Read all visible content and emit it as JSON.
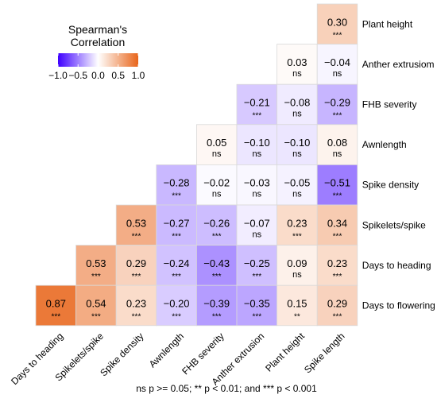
{
  "chart_data": {
    "type": "heatmap",
    "variables": [
      "Days to heading",
      "Spikelets/spike",
      "Spike density",
      "Awnlength",
      "FHB severity",
      "Anther extrusion",
      "Plant height",
      "Spike length"
    ],
    "rows": [
      "Plant height",
      "Anther extrusiom",
      "FHB severity",
      "Awnlength",
      "Spike density",
      "Spikelets/spike",
      "Days to heading",
      "Days to flowering"
    ],
    "columns": [
      "Days to heading",
      "Spikelets/spike",
      "Spike density",
      "Awnlength",
      "FHB severity",
      "Anther extrusion",
      "Plant height",
      "Spike length"
    ],
    "cells": [
      {
        "row": "Plant height",
        "col": "Spike length",
        "value": 0.3,
        "label": "0.30",
        "sig": "***"
      },
      {
        "row": "Anther extrusiom",
        "col": "Plant height",
        "value": 0.03,
        "label": "0.03",
        "sig": "ns"
      },
      {
        "row": "Anther extrusiom",
        "col": "Spike length",
        "value": -0.04,
        "label": "−0.04",
        "sig": "ns"
      },
      {
        "row": "FHB severity",
        "col": "Anther extrusion",
        "value": -0.21,
        "label": "−0.21",
        "sig": "***"
      },
      {
        "row": "FHB severity",
        "col": "Plant height",
        "value": -0.08,
        "label": "−0.08",
        "sig": "ns"
      },
      {
        "row": "FHB severity",
        "col": "Spike length",
        "value": -0.29,
        "label": "−0.29",
        "sig": "***"
      },
      {
        "row": "Awnlength",
        "col": "FHB severity",
        "value": 0.05,
        "label": "0.05",
        "sig": "ns"
      },
      {
        "row": "Awnlength",
        "col": "Anther extrusion",
        "value": -0.1,
        "label": "−0.10",
        "sig": "ns"
      },
      {
        "row": "Awnlength",
        "col": "Plant height",
        "value": -0.1,
        "label": "−0.10",
        "sig": "ns"
      },
      {
        "row": "Awnlength",
        "col": "Spike length",
        "value": 0.08,
        "label": "0.08",
        "sig": "ns"
      },
      {
        "row": "Spike density",
        "col": "Awnlength",
        "value": -0.28,
        "label": "−0.28",
        "sig": "***"
      },
      {
        "row": "Spike density",
        "col": "FHB severity",
        "value": -0.02,
        "label": "−0.02",
        "sig": "ns"
      },
      {
        "row": "Spike density",
        "col": "Anther extrusion",
        "value": -0.03,
        "label": "−0.03",
        "sig": "ns"
      },
      {
        "row": "Spike density",
        "col": "Plant height",
        "value": -0.05,
        "label": "−0.05",
        "sig": "ns"
      },
      {
        "row": "Spike density",
        "col": "Spike length",
        "value": -0.51,
        "label": "−0.51",
        "sig": "***"
      },
      {
        "row": "Spikelets/spike",
        "col": "Spike density",
        "value": 0.53,
        "label": "0.53",
        "sig": "***"
      },
      {
        "row": "Spikelets/spike",
        "col": "Awnlength",
        "value": -0.27,
        "label": "−0.27",
        "sig": "***"
      },
      {
        "row": "Spikelets/spike",
        "col": "FHB severity",
        "value": -0.26,
        "label": "−0.26",
        "sig": "***"
      },
      {
        "row": "Spikelets/spike",
        "col": "Anther extrusion",
        "value": -0.07,
        "label": "−0.07",
        "sig": "ns"
      },
      {
        "row": "Spikelets/spike",
        "col": "Plant height",
        "value": 0.23,
        "label": "0.23",
        "sig": "***"
      },
      {
        "row": "Spikelets/spike",
        "col": "Spike length",
        "value": 0.34,
        "label": "0.34",
        "sig": "***"
      },
      {
        "row": "Days to heading",
        "col": "Spikelets/spike",
        "value": 0.53,
        "label": "0.53",
        "sig": "***"
      },
      {
        "row": "Days to heading",
        "col": "Spike density",
        "value": 0.29,
        "label": "0.29",
        "sig": "***"
      },
      {
        "row": "Days to heading",
        "col": "Awnlength",
        "value": -0.24,
        "label": "−0.24",
        "sig": "***"
      },
      {
        "row": "Days to heading",
        "col": "FHB severity",
        "value": -0.43,
        "label": "−0.43",
        "sig": "***"
      },
      {
        "row": "Days to heading",
        "col": "Anther extrusion",
        "value": -0.25,
        "label": "−0.25",
        "sig": "***"
      },
      {
        "row": "Days to heading",
        "col": "Plant height",
        "value": 0.09,
        "label": "0.09",
        "sig": "ns"
      },
      {
        "row": "Days to heading",
        "col": "Spike length",
        "value": 0.23,
        "label": "0.23",
        "sig": "***"
      },
      {
        "row": "Days to flowering",
        "col": "Days to heading",
        "value": 0.87,
        "label": "0.87",
        "sig": "***"
      },
      {
        "row": "Days to flowering",
        "col": "Spikelets/spike",
        "value": 0.54,
        "label": "0.54",
        "sig": "***"
      },
      {
        "row": "Days to flowering",
        "col": "Spike density",
        "value": 0.23,
        "label": "0.23",
        "sig": "***"
      },
      {
        "row": "Days to flowering",
        "col": "Awnlength",
        "value": -0.2,
        "label": "−0.20",
        "sig": "***"
      },
      {
        "row": "Days to flowering",
        "col": "FHB severity",
        "value": -0.39,
        "label": "−0.39",
        "sig": "***"
      },
      {
        "row": "Days to flowering",
        "col": "Anther extrusion",
        "value": -0.35,
        "label": "−0.35",
        "sig": "***"
      },
      {
        "row": "Days to flowering",
        "col": "Plant height",
        "value": 0.15,
        "label": "0.15",
        "sig": "**"
      },
      {
        "row": "Days to flowering",
        "col": "Spike length",
        "value": 0.29,
        "label": "0.29",
        "sig": "***"
      }
    ],
    "legend": {
      "title": "Spearman's\nCorrelation",
      "range": [
        -1,
        1
      ],
      "ticks": [
        -1.0,
        -0.5,
        0.0,
        0.5,
        1.0
      ],
      "tick_labels": [
        "−1.0",
        "−0.5",
        "0.0",
        "0.5",
        "1.0"
      ],
      "position": "top-left"
    },
    "colors": {
      "low": "#3f00ff",
      "mid": "#ffffff",
      "high": "#e8651a"
    },
    "footnote": "ns p >= 0.05; ** p < 0.01; and *** p < 0.001"
  }
}
